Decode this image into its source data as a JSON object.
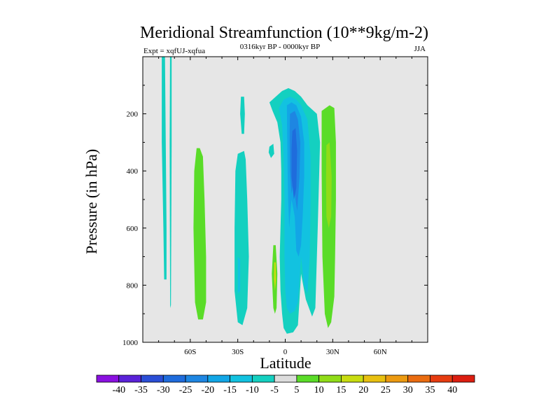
{
  "chart_data": {
    "type": "contour",
    "title": "Meridional Streamfunction (10**9kg/m-2)",
    "left_string": "Expt = xqfUJ-xqfua",
    "center_string": "0316kyr BP - 0000kyr BP",
    "right_string": "JJA",
    "xlabel": "Latitude",
    "ylabel": "Pressure (in hPa)",
    "xlim": [
      -90,
      90
    ],
    "ylim": [
      0,
      1000
    ],
    "x_ticks": [
      {
        "value": -60,
        "label": "60S"
      },
      {
        "value": -30,
        "label": "30S"
      },
      {
        "value": 0,
        "label": "0"
      },
      {
        "value": 30,
        "label": "30N"
      },
      {
        "value": 60,
        "label": "60N"
      }
    ],
    "y_ticks": [
      {
        "value": 200,
        "label": "200"
      },
      {
        "value": 400,
        "label": "400"
      },
      {
        "value": 600,
        "label": "600"
      },
      {
        "value": 800,
        "label": "800"
      },
      {
        "value": 1000,
        "label": "1000"
      }
    ],
    "missing_color": "#e6e6e6",
    "colorbar": {
      "levels": [
        "-40",
        "-35",
        "-30",
        "-25",
        "-20",
        "-15",
        "-10",
        "-5",
        "5",
        "10",
        "15",
        "20",
        "25",
        "30",
        "35",
        "40"
      ],
      "colors": [
        "#8a10e0",
        "#5a22d8",
        "#2a4ed6",
        "#1f6cdc",
        "#1e86e2",
        "#12a6e6",
        "#12c2e0",
        "#14d0c0",
        "#dcdcdc",
        "#5adc28",
        "#90dc18",
        "#c8dc10",
        "#e8c010",
        "#ec9a10",
        "#ea6c10",
        "#e63c10",
        "#dc1e10"
      ]
    },
    "regions": [
      {
        "cls": -1,
        "pts": [
          [
            -78,
            0
          ],
          [
            -76,
            0
          ],
          [
            -75.5,
            300
          ],
          [
            -75,
            600
          ],
          [
            -75,
            780
          ],
          [
            -76.5,
            780
          ],
          [
            -77,
            600
          ],
          [
            -78,
            300
          ]
        ]
      },
      {
        "cls": -1,
        "pts": [
          [
            -72.8,
            0
          ],
          [
            -71.8,
            0
          ],
          [
            -71.8,
            300
          ],
          [
            -72,
            600
          ],
          [
            -72.2,
            870
          ],
          [
            -72.7,
            880
          ],
          [
            -72.9,
            600
          ],
          [
            -73,
            300
          ]
        ]
      },
      {
        "cls": 1,
        "pts": [
          [
            -56,
            320
          ],
          [
            -54,
            320
          ],
          [
            -52,
            350
          ],
          [
            -51,
            500
          ],
          [
            -50,
            700
          ],
          [
            -50,
            860
          ],
          [
            -52,
            920
          ],
          [
            -55,
            920
          ],
          [
            -57,
            860
          ],
          [
            -58,
            600
          ],
          [
            -57.5,
            400
          ]
        ]
      },
      {
        "cls": -1,
        "pts": [
          [
            -30,
            340
          ],
          [
            -26,
            330
          ],
          [
            -25,
            360
          ],
          [
            -24,
            500
          ],
          [
            -23,
            700
          ],
          [
            -24,
            880
          ],
          [
            -27,
            940
          ],
          [
            -30,
            930
          ],
          [
            -32,
            820
          ],
          [
            -32,
            600
          ],
          [
            -31.5,
            400
          ]
        ]
      },
      {
        "cls": -2,
        "pts": [
          [
            -30,
            700
          ],
          [
            -28.5,
            710
          ],
          [
            -28.5,
            820
          ],
          [
            -30,
            830
          ]
        ]
      },
      {
        "cls": -1,
        "pts": [
          [
            -28,
            140
          ],
          [
            -26,
            140
          ],
          [
            -25.5,
            200
          ],
          [
            -26,
            270
          ],
          [
            -27.5,
            270
          ],
          [
            -28.5,
            200
          ]
        ]
      },
      {
        "cls": -1,
        "pts": [
          [
            -10,
            315
          ],
          [
            -7.5,
            305
          ],
          [
            -7,
            340
          ],
          [
            -9,
            355
          ],
          [
            -10.5,
            335
          ]
        ]
      },
      {
        "cls": 1,
        "pts": [
          [
            -7.5,
            660
          ],
          [
            -6,
            660
          ],
          [
            -5,
            760
          ],
          [
            -5.5,
            880
          ],
          [
            -6.5,
            900
          ],
          [
            -7.5,
            880
          ],
          [
            -8.5,
            760
          ]
        ]
      },
      {
        "cls": 3,
        "pts": [
          [
            -7,
            720
          ],
          [
            -6,
            720
          ],
          [
            -5.8,
            780
          ],
          [
            -6.5,
            820
          ],
          [
            -7.1,
            780
          ]
        ]
      },
      {
        "cls": 1,
        "pts": [
          [
            23,
            190
          ],
          [
            28,
            170
          ],
          [
            31,
            180
          ],
          [
            32,
            300
          ],
          [
            32,
            500
          ],
          [
            31.5,
            700
          ],
          [
            31,
            840
          ],
          [
            29,
            930
          ],
          [
            27,
            950
          ],
          [
            25,
            900
          ],
          [
            23.5,
            700
          ],
          [
            23,
            400
          ]
        ]
      },
      {
        "cls": 2,
        "pts": [
          [
            26,
            310
          ],
          [
            28,
            300
          ],
          [
            29.3,
            420
          ],
          [
            29,
            560
          ],
          [
            27.5,
            600
          ],
          [
            26,
            560
          ],
          [
            25.8,
            430
          ]
        ]
      },
      {
        "cls": -1,
        "pts": [
          [
            -10,
            160
          ],
          [
            -6,
            140
          ],
          [
            -2,
            120
          ],
          [
            2,
            110
          ],
          [
            6,
            120
          ],
          [
            10,
            140
          ],
          [
            14,
            170
          ],
          [
            20,
            200
          ],
          [
            22,
            300
          ],
          [
            21,
            500
          ],
          [
            20.5,
            600
          ],
          [
            20,
            700
          ],
          [
            19,
            880
          ],
          [
            17,
            910
          ],
          [
            13,
            850
          ],
          [
            10,
            760
          ],
          [
            8,
            940
          ],
          [
            5,
            965
          ],
          [
            1,
            970
          ],
          [
            -1,
            950
          ],
          [
            -2,
            900
          ],
          [
            -3,
            820
          ],
          [
            -3.5,
            700
          ],
          [
            -3,
            600
          ],
          [
            -2.5,
            500
          ],
          [
            -2.5,
            400
          ],
          [
            -3,
            300
          ],
          [
            -5,
            230
          ],
          [
            -8,
            190
          ]
        ]
      },
      {
        "cls": -2,
        "pts": [
          [
            -4,
            180
          ],
          [
            -1,
            150
          ],
          [
            3,
            140
          ],
          [
            7,
            150
          ],
          [
            10,
            170
          ],
          [
            14,
            220
          ],
          [
            16,
            350
          ],
          [
            16,
            500
          ],
          [
            15.5,
            700
          ],
          [
            14,
            830
          ],
          [
            12,
            800
          ],
          [
            10,
            700
          ],
          [
            9,
            780
          ],
          [
            8,
            860
          ],
          [
            6,
            890
          ],
          [
            3,
            900
          ],
          [
            1,
            880
          ],
          [
            0,
            820
          ],
          [
            -0.5,
            700
          ],
          [
            -0.5,
            500
          ],
          [
            -1,
            350
          ],
          [
            -2,
            240
          ]
        ]
      },
      {
        "cls": -3,
        "pts": [
          [
            1,
            170
          ],
          [
            4,
            160
          ],
          [
            7,
            170
          ],
          [
            10,
            210
          ],
          [
            12,
            300
          ],
          [
            12,
            420
          ],
          [
            11,
            560
          ],
          [
            10,
            660
          ],
          [
            8.5,
            700
          ],
          [
            7,
            680
          ],
          [
            6,
            560
          ],
          [
            4,
            500
          ],
          [
            3,
            560
          ],
          [
            2.5,
            600
          ],
          [
            1.8,
            500
          ],
          [
            1.5,
            400
          ],
          [
            1.2,
            260
          ]
        ]
      },
      {
        "cls": -4,
        "pts": [
          [
            3,
            200
          ],
          [
            6,
            190
          ],
          [
            8,
            220
          ],
          [
            9.5,
            300
          ],
          [
            9,
            420
          ],
          [
            7.5,
            540
          ],
          [
            5,
            440
          ],
          [
            4,
            480
          ],
          [
            3,
            400
          ],
          [
            2.8,
            280
          ]
        ]
      },
      {
        "cls": -5,
        "pts": [
          [
            4.5,
            260
          ],
          [
            6.5,
            250
          ],
          [
            7.5,
            330
          ],
          [
            7,
            460
          ],
          [
            5.5,
            500
          ],
          [
            4,
            420
          ],
          [
            4,
            320
          ]
        ]
      }
    ]
  }
}
